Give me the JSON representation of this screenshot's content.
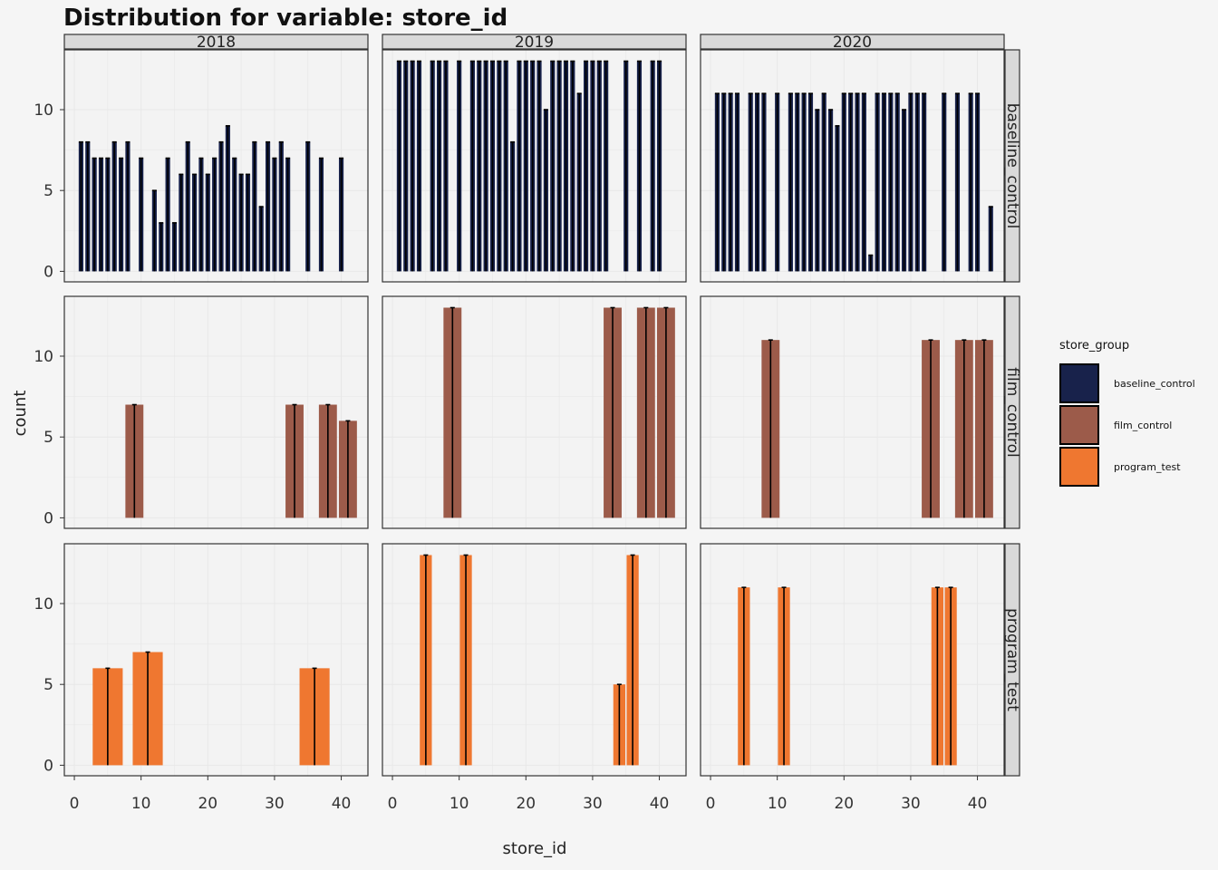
{
  "colors": {
    "baseline_control": "#18224b",
    "film_control": "#9c5b4a",
    "program_test": "#ef7730",
    "background": "#f5f5f5",
    "panel_bg": "#f3f3f3",
    "strip_bg": "#d9d9d9",
    "grid": "#e8e8e8"
  },
  "chart_data": {
    "type": "bar",
    "title": "Distribution for variable: store_id",
    "xlabel": "store_id",
    "ylabel": "count",
    "xlim": [
      -1.5,
      44
    ],
    "ylim": [
      -0.65,
      13.7
    ],
    "x_ticks": [
      0,
      10,
      20,
      30,
      40
    ],
    "y_ticks": [
      0,
      5,
      10
    ],
    "grid": true,
    "legend_position": "right",
    "legend": {
      "title": "store_group",
      "items": [
        "baseline_control",
        "film_control",
        "program_test"
      ]
    },
    "facet_cols": [
      "2018",
      "2019",
      "2020"
    ],
    "facet_rows": [
      "baseline_control",
      "film_control",
      "program_test"
    ],
    "panels": [
      {
        "year": "2018",
        "group": "baseline_control",
        "bar_width": 0.7,
        "x": [
          1,
          2,
          3,
          4,
          5,
          6,
          7,
          8,
          10,
          12,
          13,
          14,
          15,
          16,
          17,
          18,
          19,
          20,
          21,
          22,
          23,
          24,
          25,
          26,
          27,
          28,
          29,
          30,
          31,
          32,
          35,
          37,
          40
        ],
        "values": [
          8,
          8,
          7,
          7,
          7,
          8,
          7,
          8,
          7,
          5,
          3,
          7,
          3,
          6,
          8,
          6,
          7,
          6,
          7,
          8,
          9,
          7,
          6,
          6,
          8,
          4,
          8,
          7,
          8,
          7,
          8,
          7,
          7
        ]
      },
      {
        "year": "2019",
        "group": "baseline_control",
        "bar_width": 0.7,
        "x": [
          1,
          2,
          3,
          4,
          6,
          7,
          8,
          10,
          12,
          13,
          14,
          15,
          16,
          17,
          18,
          19,
          20,
          21,
          22,
          23,
          24,
          25,
          26,
          27,
          28,
          29,
          30,
          31,
          32,
          35,
          37,
          39,
          40
        ],
        "values": [
          13,
          13,
          13,
          13,
          13,
          13,
          13,
          13,
          13,
          13,
          13,
          13,
          13,
          13,
          8,
          13,
          13,
          13,
          13,
          10,
          13,
          13,
          13,
          13,
          11,
          13,
          13,
          13,
          13,
          13,
          13,
          13,
          13
        ]
      },
      {
        "year": "2020",
        "group": "baseline_control",
        "bar_width": 0.7,
        "x": [
          1,
          2,
          3,
          4,
          6,
          7,
          8,
          10,
          12,
          13,
          14,
          15,
          16,
          17,
          18,
          19,
          20,
          21,
          22,
          23,
          24,
          25,
          26,
          27,
          28,
          29,
          30,
          31,
          32,
          35,
          37,
          39,
          40,
          42
        ],
        "values": [
          11,
          11,
          11,
          11,
          11,
          11,
          11,
          11,
          11,
          11,
          11,
          11,
          10,
          11,
          10,
          9,
          11,
          11,
          11,
          11,
          1,
          11,
          11,
          11,
          11,
          10,
          11,
          11,
          11,
          11,
          11,
          11,
          11,
          4
        ]
      },
      {
        "year": "2018",
        "group": "film_control",
        "bar_width": 2.7,
        "x": [
          9,
          33,
          38,
          41
        ],
        "values": [
          7,
          7,
          7,
          6
        ]
      },
      {
        "year": "2019",
        "group": "film_control",
        "bar_width": 2.7,
        "x": [
          9,
          33,
          38,
          41
        ],
        "values": [
          13,
          13,
          13,
          13
        ]
      },
      {
        "year": "2020",
        "group": "film_control",
        "bar_width": 2.7,
        "x": [
          9,
          33,
          38,
          41
        ],
        "values": [
          11,
          11,
          11,
          11
        ]
      },
      {
        "year": "2018",
        "group": "program_test",
        "bar_width": 4.5,
        "x": [
          5,
          11,
          36
        ],
        "values": [
          6,
          7,
          6
        ]
      },
      {
        "year": "2019",
        "group": "program_test",
        "bar_width": 1.8,
        "x": [
          5,
          11,
          34,
          36
        ],
        "values": [
          13,
          13,
          5,
          13
        ]
      },
      {
        "year": "2020",
        "group": "program_test",
        "bar_width": 1.8,
        "x": [
          5,
          11,
          34,
          36
        ],
        "values": [
          11,
          11,
          11,
          11
        ]
      }
    ]
  }
}
